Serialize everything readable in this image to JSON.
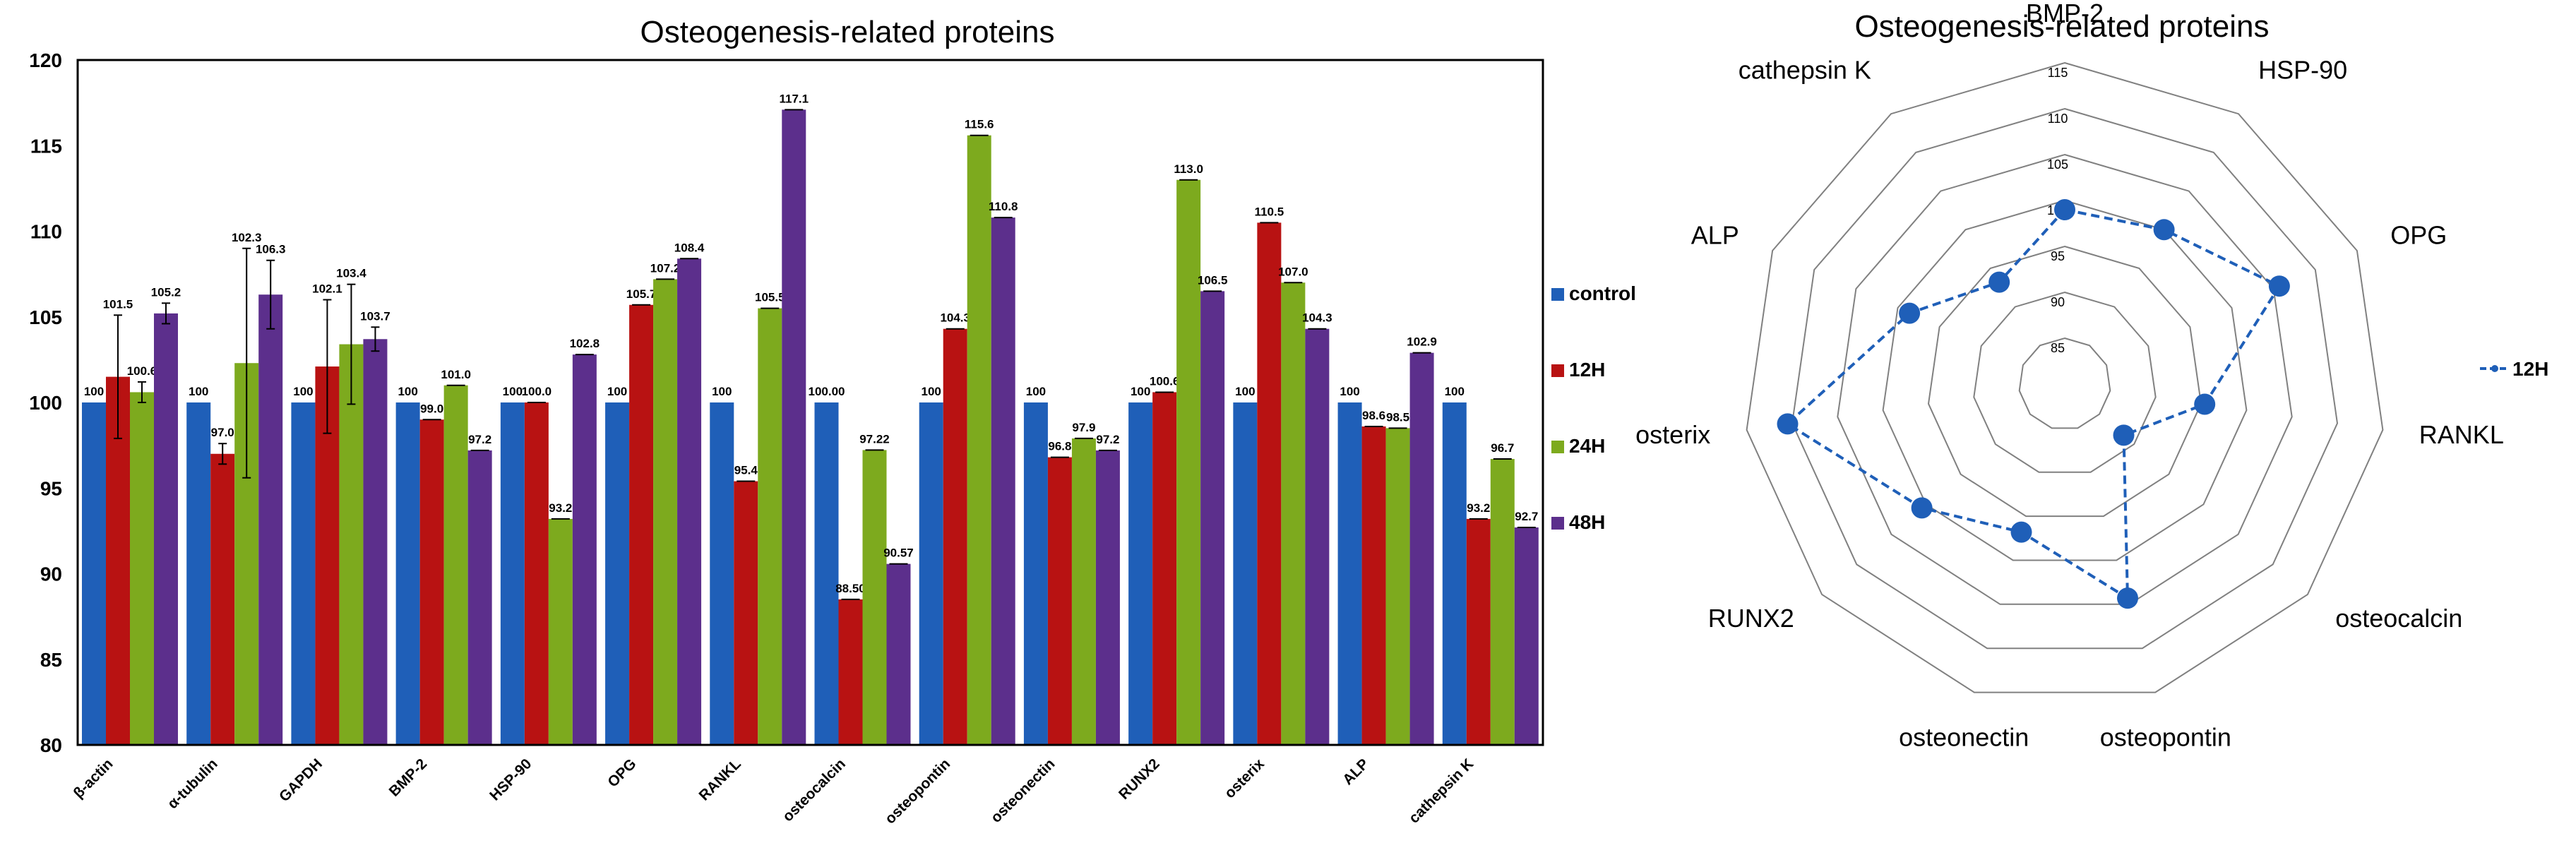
{
  "chart_data": [
    {
      "type": "bar",
      "title": "Osteogenesis-related proteins",
      "xlabel": "",
      "ylabel": "",
      "ylim": [
        80,
        120
      ],
      "yticks": [
        "80",
        "85",
        "90",
        "95",
        "100",
        "105",
        "110",
        "115",
        "120"
      ],
      "categories": [
        "β-actin",
        "α-tubulin",
        "GAPDH",
        "BMP-2",
        "HSP-90",
        "OPG",
        "RANKL",
        "osteocalcin",
        "osteopontin",
        "osteonectin",
        "RUNX2",
        "osterix",
        "ALP",
        "cathepsin K"
      ],
      "series": [
        {
          "name": "control",
          "color": "#1F5FB8",
          "values": [
            100,
            100,
            100,
            100,
            100,
            100,
            100,
            100,
            100,
            100,
            100,
            100,
            100,
            100
          ],
          "labels": [
            "100",
            "100",
            "100",
            "100",
            "100",
            "100",
            "100",
            "100.00",
            "100",
            "100",
            "100",
            "100",
            "100",
            "100"
          ],
          "errors": [
            0,
            0,
            0,
            0,
            0,
            0,
            0,
            0,
            0,
            0,
            0,
            0,
            0,
            0
          ]
        },
        {
          "name": "12H",
          "color": "#B81212",
          "values": [
            101.5,
            97.0,
            102.1,
            99.0,
            100.0,
            105.7,
            95.4,
            88.5,
            104.3,
            96.8,
            100.6,
            110.5,
            98.6,
            93.2
          ],
          "labels": [
            "101.5",
            "97.0",
            "102.1",
            "99.0",
            "100.0",
            "105.7",
            "95.4",
            "88.50",
            "104.3",
            "96.8",
            "100.6",
            "110.5",
            "98.6",
            "93.2"
          ],
          "errors": [
            3.6,
            0.6,
            3.9,
            0,
            0,
            0,
            0,
            0,
            0,
            0,
            0,
            0,
            0,
            0
          ]
        },
        {
          "name": "24H",
          "color": "#7DAA1E",
          "values": [
            100.6,
            102.3,
            103.4,
            101.0,
            93.2,
            107.2,
            105.5,
            97.22,
            115.6,
            97.9,
            113.0,
            107.0,
            98.5,
            96.7
          ],
          "labels": [
            "100.6",
            "102.3",
            "103.4",
            "101.0",
            "93.2",
            "107.2",
            "105.5",
            "97.22",
            "115.6",
            "97.9",
            "113.0",
            "107.0",
            "98.5",
            "96.7"
          ],
          "errors": [
            0.6,
            6.7,
            3.5,
            0,
            0,
            0,
            0,
            0,
            0,
            0,
            0,
            0,
            0,
            0
          ]
        },
        {
          "name": "48H",
          "color": "#5C2F8C",
          "values": [
            105.2,
            106.3,
            103.7,
            97.2,
            102.8,
            108.4,
            117.1,
            90.57,
            110.8,
            97.2,
            106.5,
            104.3,
            102.9,
            92.7
          ],
          "labels": [
            "105.2",
            "106.3",
            "103.7",
            "97.2",
            "102.8",
            "108.4",
            "117.1",
            "90.57",
            "110.8",
            "97.2",
            "106.5",
            "104.3",
            "102.9",
            "92.7"
          ],
          "errors": [
            0.6,
            2.0,
            0.7,
            0,
            0,
            0,
            0,
            0,
            0,
            0,
            0,
            0,
            0,
            0
          ]
        }
      ],
      "legend_position": "right"
    },
    {
      "type": "radar",
      "title": "Osteogenesis-related proteins",
      "axes": [
        "BMP-2",
        "HSP-90",
        "OPG",
        "RANKL",
        "osteocalcin",
        "osteopontin",
        "osteonectin",
        "RUNX2",
        "osterix",
        "ALP",
        "cathepsin K"
      ],
      "rlim": [
        80,
        115
      ],
      "rticks": [
        "85",
        "90",
        "95",
        "100",
        "105",
        "110",
        "115"
      ],
      "series": [
        {
          "name": "12H",
          "color": "#1F5FB8",
          "values": [
            99.0,
            100.0,
            105.7,
            95.4,
            88.5,
            104.3,
            96.8,
            100.6,
            110.5,
            98.6,
            93.2
          ]
        }
      ],
      "legend_position": "right"
    }
  ]
}
